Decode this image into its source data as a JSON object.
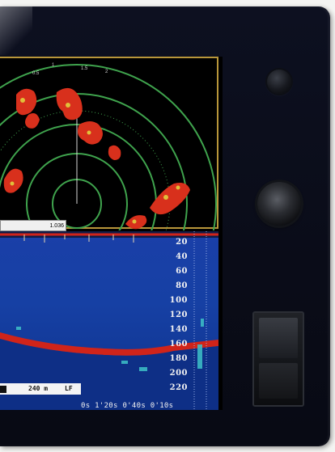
{
  "radar": {
    "info_box_text": "1.036",
    "range_ring_labels": [
      "0.5",
      "1",
      "1.5",
      "2"
    ]
  },
  "sonar": {
    "depth_scale": [
      "20",
      "40",
      "60",
      "80",
      "100",
      "120",
      "140",
      "160",
      "180",
      "200",
      "220"
    ],
    "status_range": "240 m",
    "status_mode": "LF",
    "time_scale": "0s  1'20s  0'40s  0'10s"
  },
  "colors": {
    "radar_ring": "#3fa34d",
    "echo_red": "#d8301c",
    "echo_yellow": "#e0c03a",
    "radar_border": "#b8963a",
    "sonar_water": "#1640a4",
    "bottom_line": "#d0241a"
  },
  "controls": {
    "power_button_icon": "power-button-icon",
    "rotary_knob_icon": "rotary-knob-icon",
    "card_slot_icon": "card-slot-icon"
  }
}
